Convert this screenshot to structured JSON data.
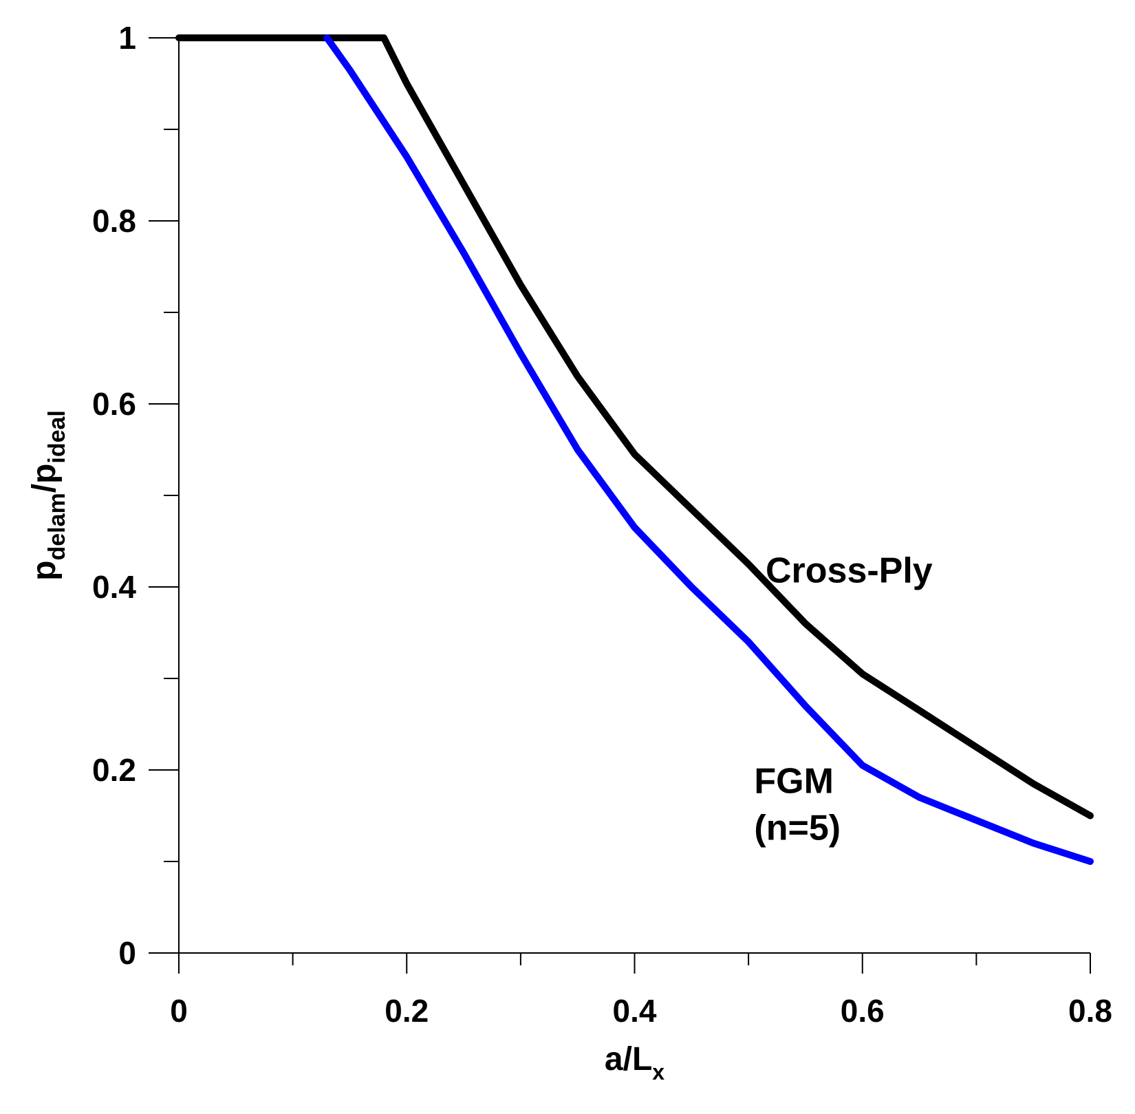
{
  "chart_data": {
    "type": "line",
    "title": "",
    "xlabel": {
      "base": "a/L",
      "subscript": "x"
    },
    "ylabel": {
      "num_base": "p",
      "num_sub": "delam",
      "sep": "/",
      "den_base": "p",
      "den_sub": "ideal"
    },
    "xlim": [
      0,
      0.8
    ],
    "ylim": [
      0,
      1
    ],
    "x_ticks": [
      0,
      0.2,
      0.4,
      0.6,
      0.8
    ],
    "x_tick_labels": [
      "0",
      "0.2",
      "0.4",
      "0.6",
      "0.8"
    ],
    "x_minor_ticks": [
      0.1,
      0.3,
      0.5,
      0.7
    ],
    "y_ticks": [
      0,
      0.2,
      0.4,
      0.6,
      0.8,
      1
    ],
    "y_tick_labels": [
      "0",
      "0.2",
      "0.4",
      "0.6",
      "0.8",
      "1"
    ],
    "y_minor_ticks": [
      0.1,
      0.3,
      0.5,
      0.7,
      0.9
    ],
    "grid": false,
    "series": [
      {
        "name": "Cross-Ply",
        "color": "#000000",
        "x": [
          0,
          0.1,
          0.18,
          0.2,
          0.25,
          0.3,
          0.35,
          0.4,
          0.45,
          0.5,
          0.55,
          0.6,
          0.65,
          0.7,
          0.75,
          0.8
        ],
        "y": [
          1,
          1,
          1,
          0.95,
          0.84,
          0.73,
          0.63,
          0.545,
          0.485,
          0.425,
          0.36,
          0.305,
          0.265,
          0.225,
          0.185,
          0.15
        ]
      },
      {
        "name": "FGM (n=5)",
        "color": "#0000ff",
        "x": [
          0.13,
          0.15,
          0.2,
          0.25,
          0.3,
          0.35,
          0.4,
          0.45,
          0.5,
          0.55,
          0.6,
          0.65,
          0.7,
          0.75,
          0.8
        ],
        "y": [
          1,
          0.965,
          0.87,
          0.765,
          0.655,
          0.55,
          0.465,
          0.4,
          0.34,
          0.27,
          0.205,
          0.17,
          0.145,
          0.12,
          0.1
        ]
      }
    ],
    "annotations": [
      {
        "series": "Cross-Ply",
        "lines": [
          "Cross-Ply"
        ]
      },
      {
        "series": "FGM (n=5)",
        "lines": [
          "FGM",
          "(n=5)"
        ]
      }
    ]
  }
}
